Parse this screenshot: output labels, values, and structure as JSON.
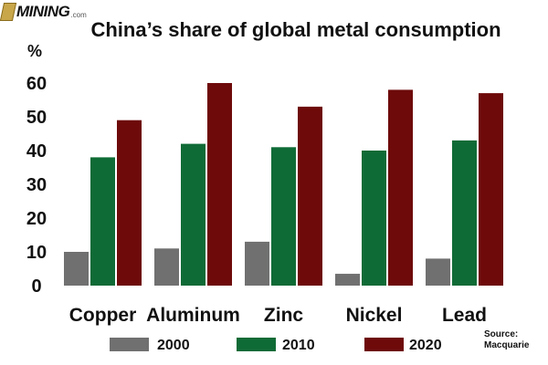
{
  "logo": {
    "name": "MINING",
    "suffix": ".com"
  },
  "source_note": "Source:\nMacquarie",
  "colors": {
    "2000": "#707070",
    "2010": "#0f6b36",
    "2020": "#6e0a0a"
  },
  "chart_data": {
    "type": "bar",
    "title": "China’s share of global metal consumption",
    "ylabel": "%",
    "xlabel": "",
    "ylim": [
      0,
      60
    ],
    "yticks": [
      0,
      10,
      20,
      30,
      40,
      50,
      60
    ],
    "categories": [
      "Copper",
      "Aluminum",
      "Zinc",
      "Nickel",
      "Lead"
    ],
    "series": [
      {
        "name": "2000",
        "values": [
          10,
          11,
          13,
          3.5,
          8
        ]
      },
      {
        "name": "2010",
        "values": [
          38,
          42,
          41,
          40,
          43
        ]
      },
      {
        "name": "2020",
        "values": [
          49,
          60,
          53,
          58,
          57
        ]
      }
    ],
    "legend_position": "bottom"
  }
}
